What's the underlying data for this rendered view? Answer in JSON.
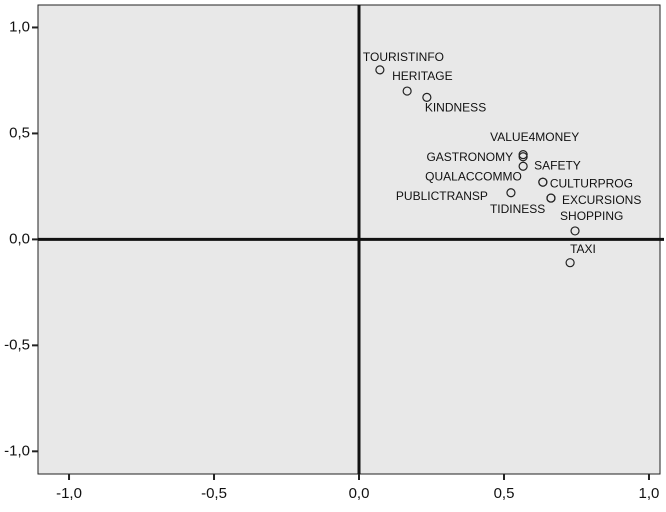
{
  "chart_data": {
    "type": "scatter",
    "labels": [
      "TOURISTINFO",
      "HERITAGE",
      "KINDNESS",
      "VALUE4MONEY",
      "GASTRONOMY",
      "SAFETY",
      "QUALACCOMMO",
      "CULTURPROG",
      "PUBLICTRANSP",
      "TIDINESS",
      "EXCURSIONS",
      "SHOPPING",
      "TAXI"
    ],
    "x": [
      0.072,
      0.166,
      0.234,
      0.566,
      0.566,
      0.566,
      0.634,
      0.634,
      0.524,
      0.662,
      0.662,
      0.745,
      0.728
    ],
    "values": [
      0.8,
      0.7,
      0.67,
      0.4,
      0.39,
      0.345,
      0.27,
      0.27,
      0.22,
      0.195,
      0.195,
      0.04,
      -0.11
    ],
    "xlim": [
      -1.107,
      1.038
    ],
    "ylim": [
      -1.107,
      1.106
    ],
    "xticks": [
      {
        "value": -1.0,
        "label": "-1,0"
      },
      {
        "value": -0.5,
        "label": "-0,5"
      },
      {
        "value": 0.0,
        "label": "0,0"
      },
      {
        "value": 0.5,
        "label": "0,5"
      },
      {
        "value": 1.0,
        "label": "1,0"
      }
    ],
    "yticks": [
      {
        "value": 1.0,
        "label": "1,0"
      },
      {
        "value": 0.5,
        "label": "0,5"
      },
      {
        "value": 0.0,
        "label": "0,0"
      },
      {
        "value": -0.5,
        "label": "-0,5"
      },
      {
        "value": -1.0,
        "label": "-1,0"
      }
    ],
    "color": "#222222"
  }
}
